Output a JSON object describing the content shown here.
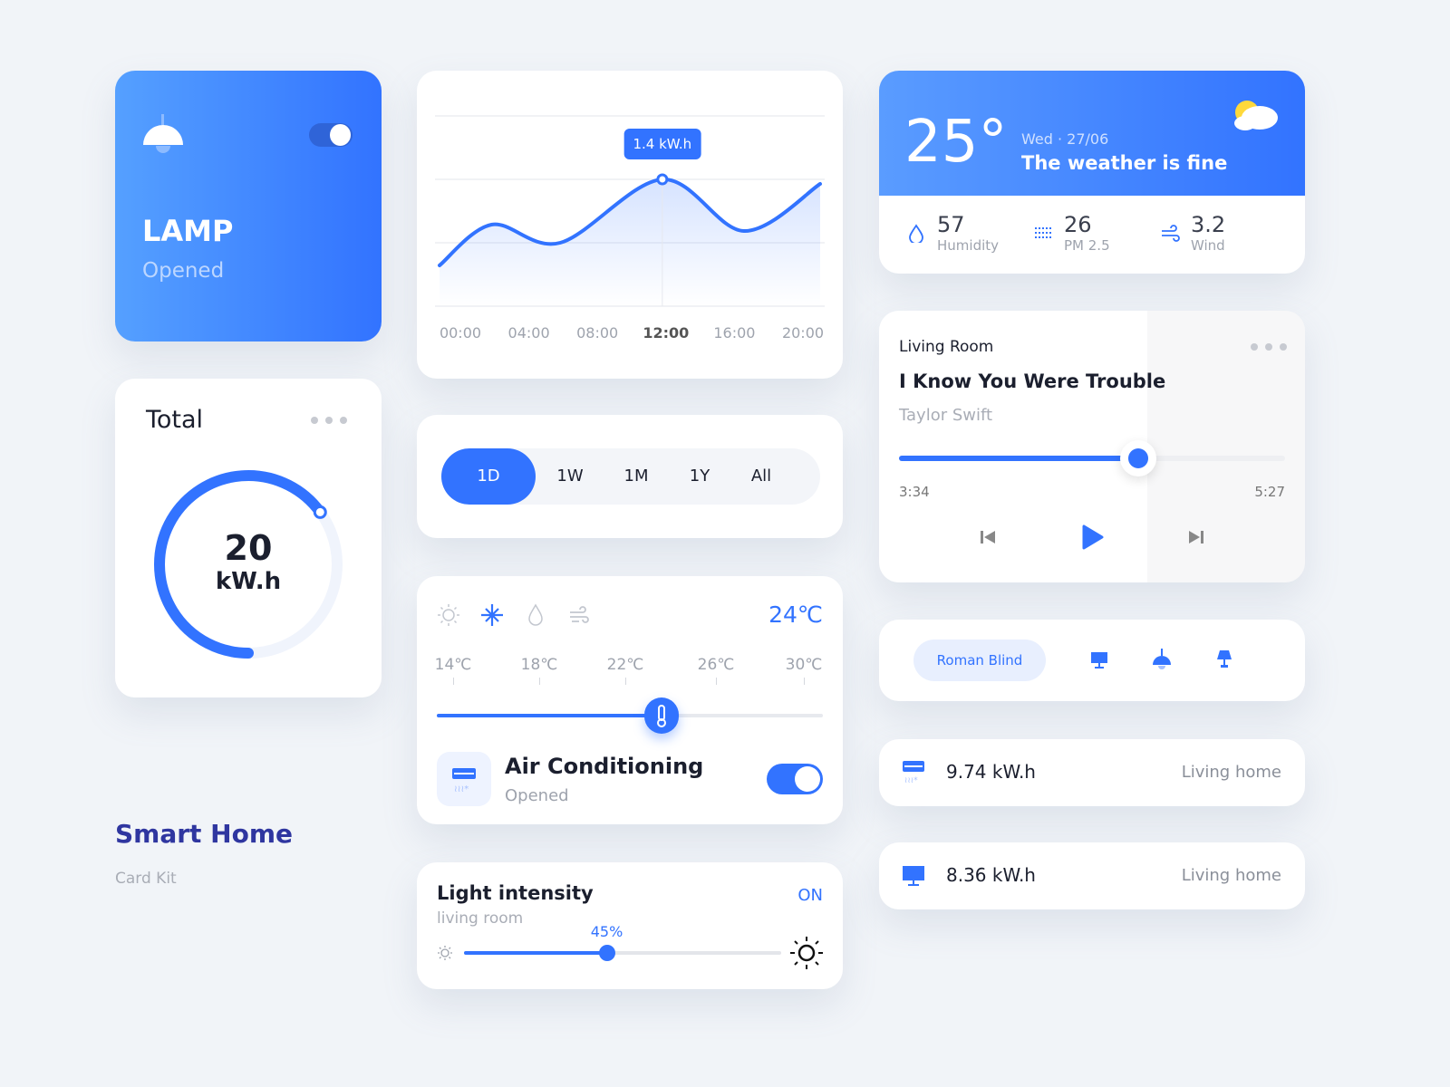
{
  "colors": {
    "accent": "#3273ff",
    "background": "#f1f4f8",
    "title": "#2f36a0"
  },
  "lamp": {
    "title": "LAMP",
    "status": "Opened",
    "toggle_on": true,
    "icon": "pendant-lamp-icon"
  },
  "total": {
    "title": "Total",
    "value": "20",
    "unit": "kW.h",
    "gauge_fraction": 0.65
  },
  "branding": {
    "title": "Smart Home",
    "subtitle": "Card Kit"
  },
  "chart_data": {
    "type": "area",
    "x_labels": [
      "00:00",
      "04:00",
      "08:00",
      "12:00",
      "16:00",
      "20:00"
    ],
    "highlight_label": "12:00",
    "x_hours": [
      0,
      2.8,
      6.5,
      12,
      16.4,
      20.5
    ],
    "values": [
      0.45,
      0.9,
      0.7,
      1.4,
      0.83,
      1.35
    ],
    "tooltip": "1.4 kW.h",
    "unit": "kW.h",
    "grid": true
  },
  "range": {
    "options": [
      "1D",
      "1W",
      "1M",
      "1Y",
      "All"
    ],
    "selected": "1D"
  },
  "ac": {
    "modes": [
      "sun-icon",
      "snowflake-icon",
      "drop-icon",
      "wind-icon"
    ],
    "active_mode": "snowflake-icon",
    "current": "24℃",
    "scale": [
      "14℃",
      "18℃",
      "22℃",
      "26℃",
      "30℃"
    ],
    "min": 14,
    "max": 30,
    "value": 24,
    "name": "Air Conditioning",
    "status": "Opened",
    "toggle_on": true
  },
  "light": {
    "title": "Light intensity",
    "room": "living room",
    "state": "ON",
    "percent_label": "45%",
    "percent": 45
  },
  "weather": {
    "temp": "25°",
    "date": "Wed · 27/06",
    "desc": "The weather is fine",
    "stats": [
      {
        "value": "57",
        "label": "Humidity",
        "icon": "humidity-drop-icon"
      },
      {
        "value": "26",
        "label": "PM 2.5",
        "icon": "pm25-icon"
      },
      {
        "value": "3.2",
        "label": "Wind",
        "icon": "wind-icon"
      }
    ]
  },
  "music": {
    "room": "Living Room",
    "song": "I Know You Were Trouble",
    "artist": "Taylor Swift",
    "elapsed": "3:34",
    "total": "5:27",
    "progress": 0.62
  },
  "devices": {
    "selected": "Roman Blind",
    "icons": [
      "monitor-icon",
      "pendant-lamp-icon",
      "table-lamp-icon"
    ]
  },
  "usage": [
    {
      "value": "9.74 kW.h",
      "place": "Living home",
      "icon": "air-conditioner-icon"
    },
    {
      "value": "8.36 kW.h",
      "place": "Living home",
      "icon": "monitor-icon"
    }
  ]
}
